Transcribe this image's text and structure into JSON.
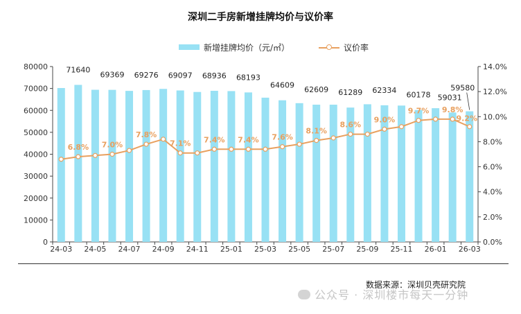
{
  "chart_data": {
    "type": "bar+line",
    "title": "深圳二手房新增挂牌均价与议价率",
    "legend": [
      "新增挂牌均价（元/㎡）",
      "议价率"
    ],
    "legend_placement": "top-center",
    "x_tick_labels": [
      "24-03",
      "24-05",
      "24-07",
      "24-09",
      "24-11",
      "25-01",
      "25-03",
      "25-05",
      "25-07",
      "25-09",
      "25-11",
      "26-01",
      "26-03"
    ],
    "x": [
      "24-03",
      "24-04",
      "24-05",
      "24-06",
      "24-07",
      "24-08",
      "24-09",
      "24-10",
      "24-11",
      "24-12",
      "25-01",
      "25-02",
      "25-03",
      "25-04",
      "25-05",
      "25-06",
      "25-07",
      "25-08",
      "25-09",
      "25-10",
      "25-11",
      "25-12",
      "26-01",
      "26-02",
      "26-03"
    ],
    "series": [
      {
        "name": "新增挂牌均价（元/㎡）",
        "axis": "left",
        "type": "bar",
        "values": [
          70200,
          71640,
          69400,
          69369,
          68900,
          69276,
          69800,
          69097,
          68400,
          68936,
          68800,
          68193,
          65800,
          64609,
          63300,
          62609,
          62600,
          61289,
          62800,
          62334,
          62200,
          60178,
          61000,
          59031,
          59580
        ],
        "data_labels": [
          "",
          "71640",
          "",
          "69369",
          "",
          "69276",
          "",
          "69097",
          "",
          "68936",
          "",
          "68193",
          "",
          "64609",
          "",
          "62609",
          "",
          "61289",
          "",
          "62334",
          "",
          "60178",
          "",
          "59031",
          "59580"
        ]
      },
      {
        "name": "议价率",
        "axis": "right",
        "type": "line",
        "values": [
          6.6,
          6.8,
          6.9,
          7.0,
          7.3,
          7.8,
          8.2,
          7.1,
          7.1,
          7.4,
          7.4,
          7.4,
          7.4,
          7.6,
          7.8,
          8.1,
          8.3,
          8.6,
          8.6,
          9.0,
          9.2,
          9.7,
          9.8,
          9.8,
          9.2
        ],
        "data_labels": [
          "",
          "6.8%",
          "",
          "7.0%",
          "",
          "7.8%",
          "",
          "7.1%",
          "",
          "7.4%",
          "",
          "7.4%",
          "",
          "7.6%",
          "",
          "8.1%",
          "",
          "8.6%",
          "",
          "9.0%",
          "",
          "9.7%",
          "",
          "9.8%",
          "9.2%"
        ]
      }
    ],
    "ylim_left": [
      0,
      80000
    ],
    "yticks_left": [
      "0",
      "10000",
      "20000",
      "30000",
      "40000",
      "50000",
      "60000",
      "70000",
      "80000"
    ],
    "ylim_right": [
      0,
      14
    ],
    "yticks_right": [
      "0.0%",
      "2.0%",
      "4.0%",
      "6.0%",
      "8.0%",
      "10.0%",
      "12.0%",
      "14.0%"
    ],
    "grid": false,
    "colors": {
      "bar": "#98E1F4",
      "line": "#E8A05F",
      "line_label": "#E8A05F"
    }
  },
  "source_note": "数据来源：深圳贝壳研究院",
  "watermark": "公众号 · 深圳楼市每天一分钟"
}
